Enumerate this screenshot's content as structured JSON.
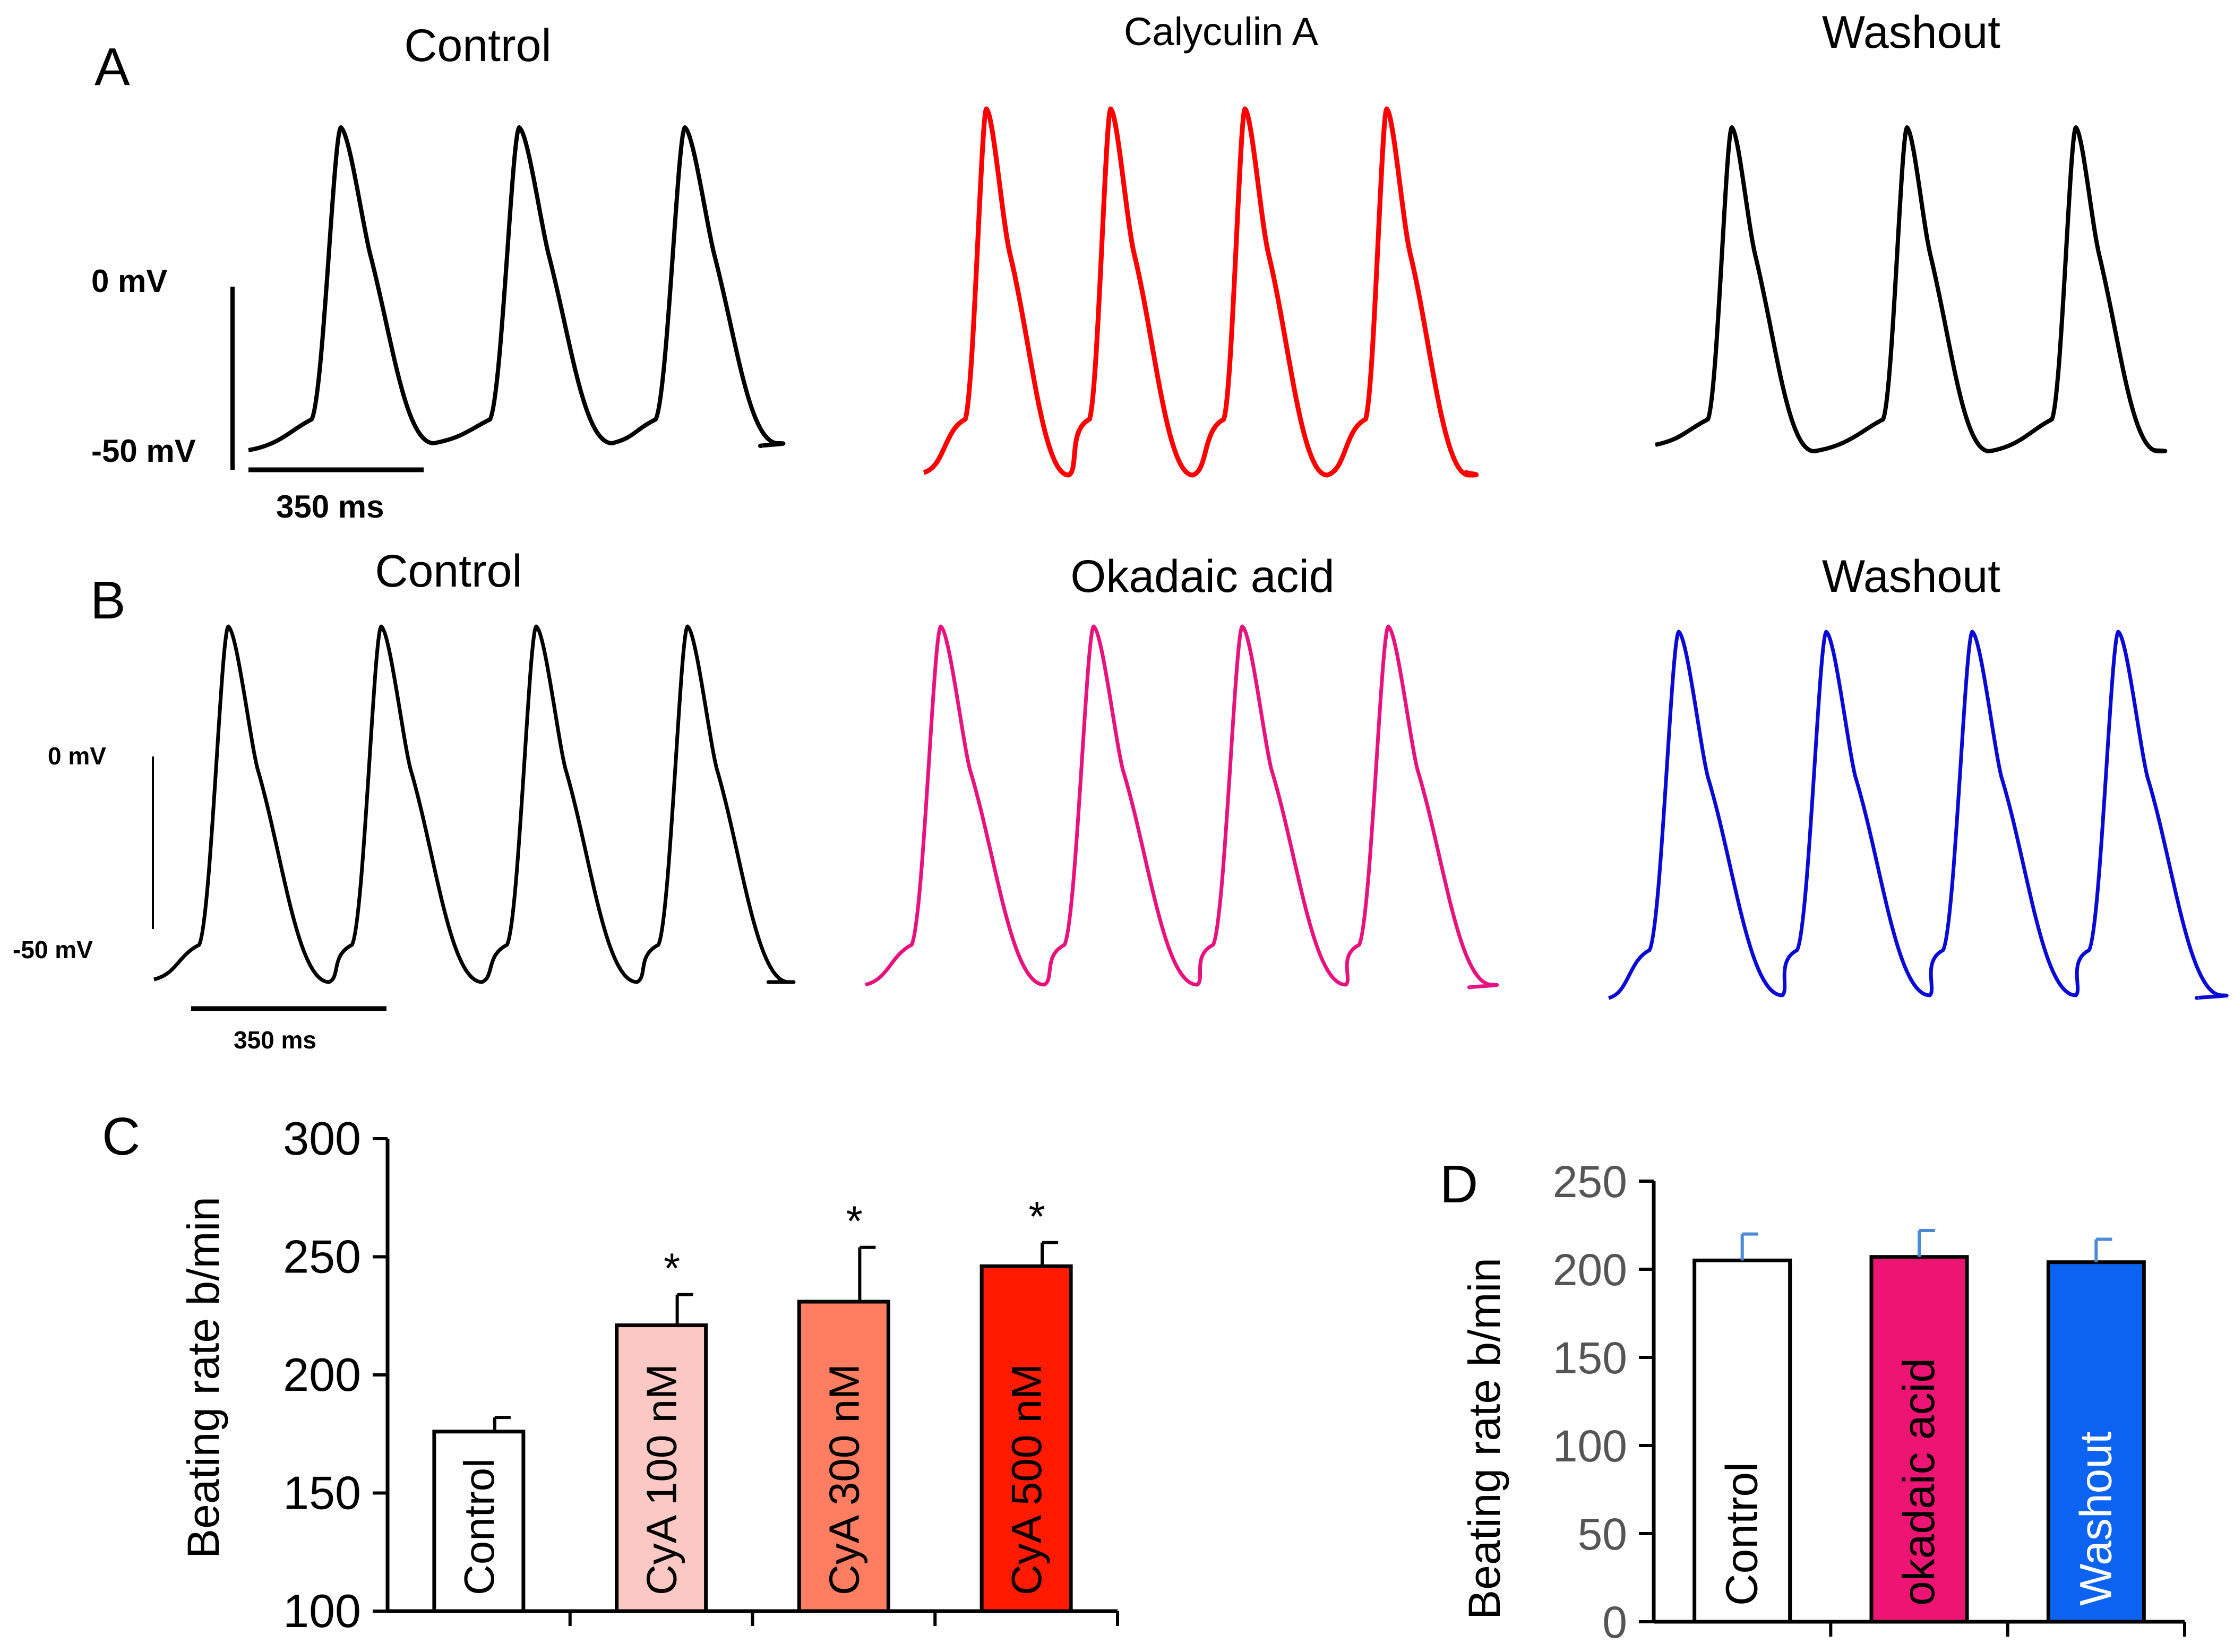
{
  "panels": {
    "A": {
      "letter": "A",
      "conditions": [
        {
          "title": "Control",
          "color": "#000000"
        },
        {
          "title": "Calyculin A",
          "color": "#ff0000"
        },
        {
          "title": "Washout",
          "color": "#000000"
        }
      ],
      "scale": {
        "top_label": "0 mV",
        "bottom_label": "-50 mV",
        "time_label": "350 ms"
      }
    },
    "B": {
      "letter": "B",
      "conditions": [
        {
          "title": "Control",
          "color": "#000000"
        },
        {
          "title": "Okadaic acid",
          "color": "#e8127f"
        },
        {
          "title": "Washout",
          "color": "#0a0ad6"
        }
      ],
      "scale": {
        "top_label": "0 mV",
        "bottom_label": "-50 mV",
        "time_label": "350 ms"
      }
    },
    "C": {
      "letter": "C"
    },
    "D": {
      "letter": "D"
    }
  },
  "chart_data": [
    {
      "panel": "C",
      "type": "bar",
      "categories": [
        "Control",
        "CyA 100 nM",
        "CyA 300 nM",
        "CyA 500 nM"
      ],
      "values": [
        176,
        221,
        231,
        246
      ],
      "errors": [
        6,
        13,
        23,
        10
      ],
      "significance": [
        "",
        "*",
        "*",
        "*"
      ],
      "colors": [
        "#ffffff",
        "#fcc8c3",
        "#ff7e61",
        "#ff1a00"
      ],
      "ylabel": "Beating rate b/min",
      "ylim": [
        100,
        300
      ],
      "yticks": [
        100,
        150,
        200,
        250,
        300
      ]
    },
    {
      "panel": "D",
      "type": "bar",
      "categories": [
        "Control",
        "okadaic acid",
        "Washout"
      ],
      "values": [
        205,
        207,
        204
      ],
      "errors": [
        15,
        15,
        13
      ],
      "colors": [
        "#ffffff",
        "#ee1474",
        "#0c63f2"
      ],
      "ylabel": "Beating rate b/min",
      "ylim": [
        0,
        250
      ],
      "yticks": [
        0,
        50,
        100,
        150,
        200,
        250
      ]
    }
  ]
}
